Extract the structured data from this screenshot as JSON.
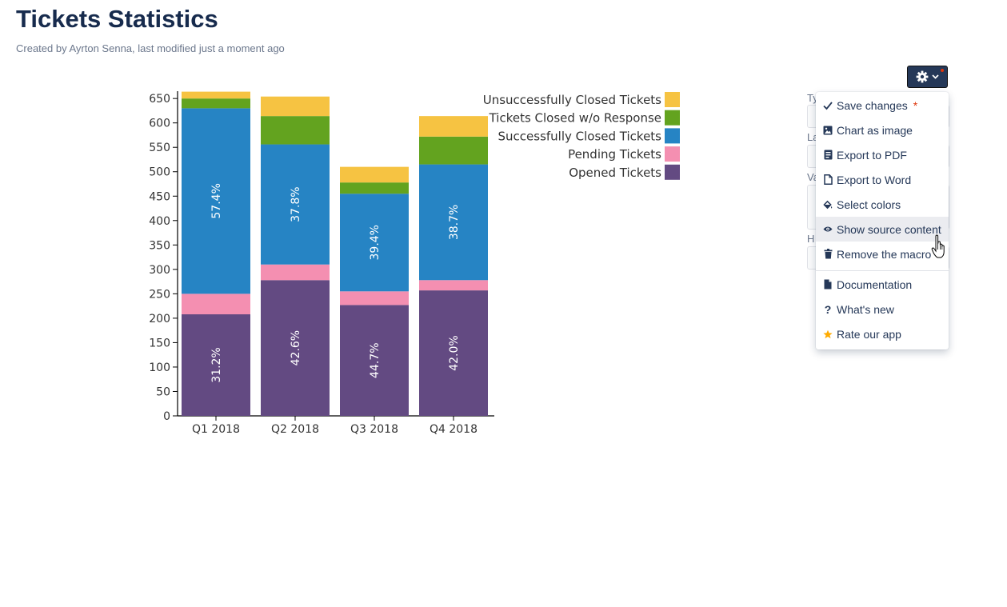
{
  "page": {
    "title": "Tickets Statistics",
    "byline": "Created by Ayrton Senna, last modified just a moment ago"
  },
  "colors": {
    "opened": "#634a82",
    "pending": "#f48fb1",
    "successful": "#2684c4",
    "no_response": "#63a31f",
    "unsuccessful": "#f6c342",
    "header_button": "#253858",
    "star": "#ffab00"
  },
  "chart_data": {
    "type": "bar",
    "stacked": true,
    "categories": [
      "Q1 2018",
      "Q2 2018",
      "Q3 2018",
      "Q4 2018"
    ],
    "series": [
      {
        "name": "Opened Tickets",
        "color": "#634a82",
        "values": [
          208,
          278,
          227,
          257
        ]
      },
      {
        "name": "Pending Tickets",
        "color": "#f48fb1",
        "values": [
          42,
          32,
          28,
          21
        ]
      },
      {
        "name": "Successfully Closed Tickets",
        "color": "#2684c4",
        "values": [
          380,
          246,
          200,
          237
        ]
      },
      {
        "name": "Tickets Closed w/o Response",
        "color": "#63a31f",
        "values": [
          20,
          58,
          23,
          57
        ]
      },
      {
        "name": "Unsuccessfully Closed Tickets",
        "color": "#f6c342",
        "values": [
          14,
          40,
          32,
          42
        ]
      }
    ],
    "data_labels": [
      {
        "series": "Opened Tickets",
        "labels": [
          "31.2%",
          "42.6%",
          "44.7%",
          "42.0%"
        ]
      },
      {
        "series": "Successfully Closed Tickets",
        "labels": [
          "57.4%",
          "37.8%",
          "39.4%",
          "38.7%"
        ]
      }
    ],
    "y_ticks": [
      0,
      50,
      100,
      150,
      200,
      250,
      300,
      350,
      400,
      450,
      500,
      550,
      600,
      650
    ],
    "ylim": [
      0,
      665
    ],
    "legend_order": [
      "Unsuccessfully Closed Tickets",
      "Tickets Closed w/o Response",
      "Successfully Closed Tickets",
      "Pending Tickets",
      "Opened Tickets"
    ],
    "legend_position": "top-right",
    "title": "",
    "xlabel": "",
    "ylabel": ""
  },
  "form": {
    "labels": [
      "Ty",
      "La",
      "Va",
      "H"
    ]
  },
  "gear_menu": {
    "button_icon": "gear-icon",
    "items": [
      {
        "label": "Save changes",
        "icon": "check-icon",
        "required_mark": "*"
      },
      {
        "label": "Chart as image",
        "icon": "image-icon"
      },
      {
        "label": "Export to PDF",
        "icon": "pdf-icon"
      },
      {
        "label": "Export to Word",
        "icon": "file-icon"
      },
      {
        "label": "Select colors",
        "icon": "paint-bucket-icon"
      },
      {
        "label": "Show source content",
        "icon": "eye-icon"
      },
      {
        "label": "Remove the macro",
        "icon": "trash-icon"
      },
      {
        "label": "Documentation",
        "icon": "document-icon"
      },
      {
        "label": "What's new",
        "icon": "question-icon"
      },
      {
        "label": "Rate our app",
        "icon": "star-icon"
      }
    ]
  }
}
